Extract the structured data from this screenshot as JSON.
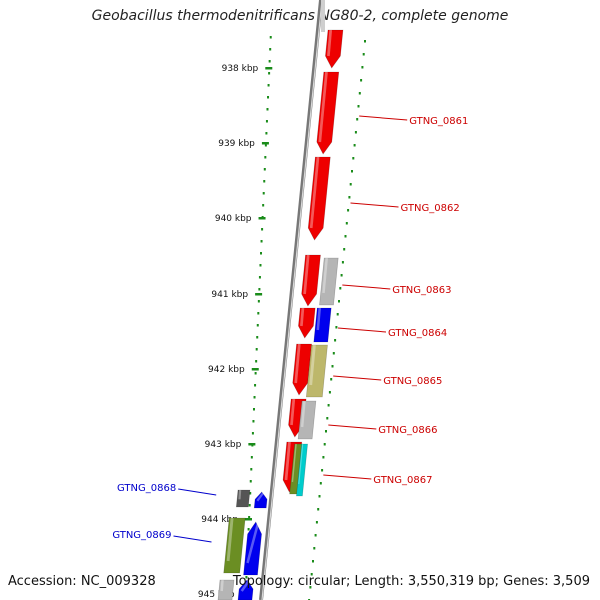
{
  "title": "Geobacillus thermodenitrificans NG80-2, complete genome",
  "footer": {
    "accession": "Accession: NC_009328",
    "summary": "Topology: circular; Length: 3,550,319 bp; Genes: 3,509"
  },
  "colors": {
    "backbone": "#888888",
    "ruler": "#1a8c1a",
    "forward_label": "#cc0000",
    "reverse_label": "#0000cc",
    "cds_red": "#ee0000",
    "grey": "#b5b5b5",
    "blue": "#0000ee",
    "olive": "#bdb76b",
    "green": "#6b8e23",
    "cyan": "#00cccc",
    "dark": "#555555"
  },
  "scale": {
    "ticks": [
      "938 kbp",
      "939 kbp",
      "940 kbp",
      "941 kbp",
      "942 kbp",
      "943 kbp",
      "944 kbp",
      "945 kbp"
    ]
  },
  "gene_labels": [
    {
      "text": "GTNG_0861",
      "strand": "forward"
    },
    {
      "text": "GTNG_0862",
      "strand": "forward"
    },
    {
      "text": "GTNG_0863",
      "strand": "forward"
    },
    {
      "text": "GTNG_0864",
      "strand": "forward"
    },
    {
      "text": "GTNG_0865",
      "strand": "forward"
    },
    {
      "text": "GTNG_0866",
      "strand": "forward"
    },
    {
      "text": "GTNG_0867",
      "strand": "forward"
    },
    {
      "text": "GTNG_0868",
      "strand": "reverse"
    },
    {
      "text": "GTNG_0869",
      "strand": "reverse"
    }
  ]
}
